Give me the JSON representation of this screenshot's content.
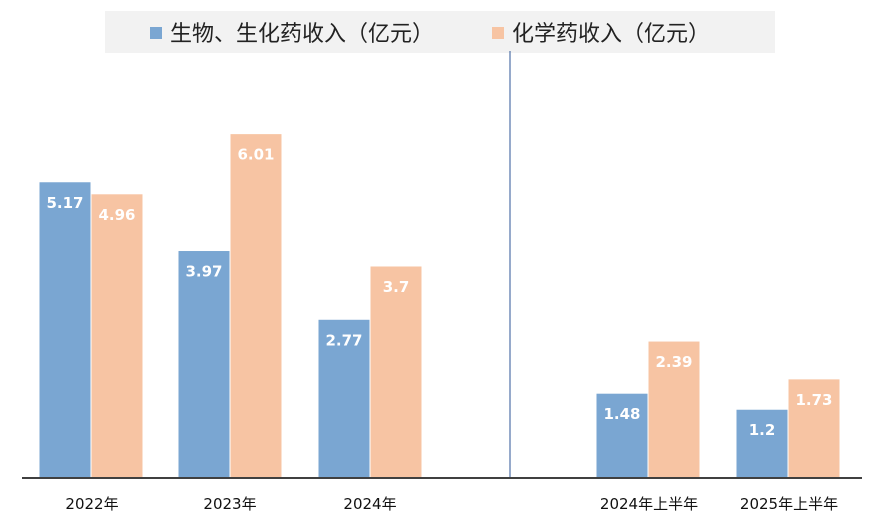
{
  "chart_data": {
    "type": "bar",
    "categories": [
      "2022年",
      "2023年",
      "2024年",
      "2024年上半年",
      "2025年上半年"
    ],
    "series": [
      {
        "name": "生物、生化药收入（亿元）",
        "color": "#7aa6d2",
        "values": [
          5.17,
          3.97,
          2.77,
          1.48,
          1.2
        ],
        "labels": [
          "5.17",
          "3.97",
          "2.77",
          "1.48",
          "1.2"
        ]
      },
      {
        "name": "化学药收入（亿元）",
        "color": "#f7c4a3",
        "values": [
          4.96,
          6.01,
          3.7,
          2.39,
          1.73
        ],
        "labels": [
          "4.96",
          "6.01",
          "3.7",
          "2.39",
          "1.73"
        ]
      }
    ],
    "ylim": [
      0,
      6.3
    ],
    "grid": false,
    "legend_position": "top",
    "legend_background": "#f2f2f2",
    "divider_color": "#2e5597",
    "baseline_color": "#404040"
  }
}
